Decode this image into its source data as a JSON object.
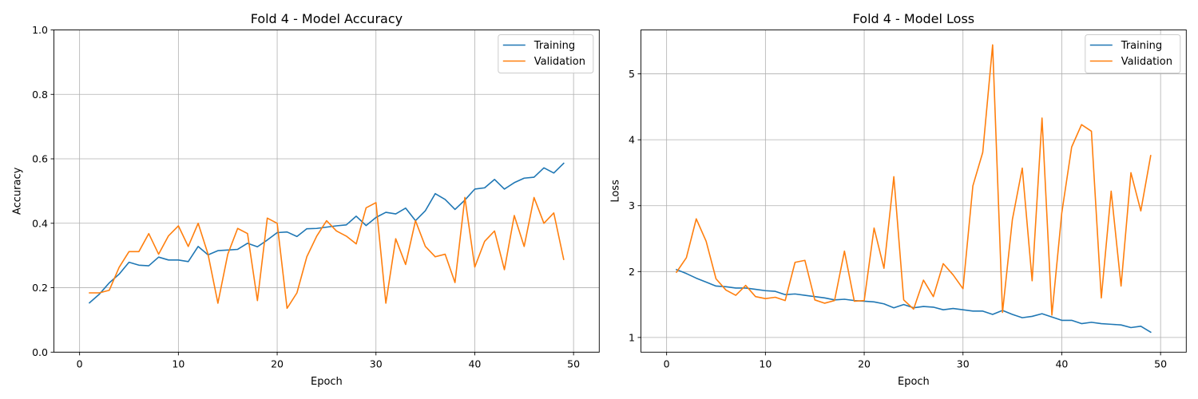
{
  "chart_data": [
    {
      "type": "line",
      "title": "Fold 4 - Model Accuracy",
      "xlabel": "Epoch",
      "ylabel": "Accuracy",
      "xlim": [
        -2.6,
        52.6
      ],
      "ylim": [
        0,
        1
      ],
      "xticks": [
        0,
        10,
        20,
        30,
        40,
        50
      ],
      "xtick_labels": [
        "0",
        "10",
        "20",
        "30",
        "40",
        "50"
      ],
      "yticks": [
        0,
        0.2,
        0.4,
        0.6,
        0.8,
        1.0
      ],
      "ytick_labels": [
        "0.0",
        "0.2",
        "0.4",
        "0.6",
        "0.8",
        "1.0"
      ],
      "grid": true,
      "legend_position": "top-right",
      "x": [
        1,
        2,
        3,
        4,
        5,
        6,
        7,
        8,
        9,
        10,
        11,
        12,
        13,
        14,
        15,
        16,
        17,
        18,
        19,
        20,
        21,
        22,
        23,
        24,
        25,
        26,
        27,
        28,
        29,
        30,
        31,
        32,
        33,
        34,
        35,
        36,
        37,
        38,
        39,
        40,
        41,
        42,
        43,
        44,
        45,
        46,
        47,
        48,
        49
      ],
      "series": [
        {
          "name": "Training",
          "color": "#1f77b4",
          "values": [
            0.153,
            0.18,
            0.215,
            0.242,
            0.279,
            0.27,
            0.268,
            0.295,
            0.286,
            0.286,
            0.281,
            0.328,
            0.302,
            0.315,
            0.317,
            0.319,
            0.338,
            0.327,
            0.348,
            0.371,
            0.373,
            0.359,
            0.383,
            0.384,
            0.388,
            0.392,
            0.395,
            0.422,
            0.393,
            0.418,
            0.434,
            0.429,
            0.447,
            0.408,
            0.439,
            0.492,
            0.474,
            0.443,
            0.472,
            0.506,
            0.51,
            0.536,
            0.506,
            0.526,
            0.54,
            0.543,
            0.572,
            0.556,
            0.586
          ]
        },
        {
          "name": "Validation",
          "color": "#ff7f0e",
          "values": [
            0.184,
            0.184,
            0.192,
            0.263,
            0.312,
            0.312,
            0.368,
            0.304,
            0.361,
            0.392,
            0.328,
            0.4,
            0.304,
            0.152,
            0.304,
            0.384,
            0.368,
            0.16,
            0.416,
            0.4,
            0.136,
            0.184,
            0.296,
            0.36,
            0.408,
            0.376,
            0.36,
            0.336,
            0.448,
            0.464,
            0.152,
            0.352,
            0.272,
            0.408,
            0.328,
            0.296,
            0.304,
            0.216,
            0.48,
            0.264,
            0.344,
            0.376,
            0.256,
            0.424,
            0.328,
            0.48,
            0.4,
            0.432,
            0.288
          ]
        }
      ]
    },
    {
      "type": "line",
      "title": "Fold 4 - Model Loss",
      "xlabel": "Epoch",
      "ylabel": "Loss",
      "xlim": [
        -2.6,
        52.6
      ],
      "ylim": [
        0.777,
        5.667
      ],
      "xticks": [
        0,
        10,
        20,
        30,
        40,
        50
      ],
      "xtick_labels": [
        "0",
        "10",
        "20",
        "30",
        "40",
        "50"
      ],
      "yticks": [
        1,
        2,
        3,
        4,
        5
      ],
      "ytick_labels": [
        "1",
        "2",
        "3",
        "4",
        "5"
      ],
      "grid": true,
      "legend_position": "top-right",
      "x": [
        1,
        2,
        3,
        4,
        5,
        6,
        7,
        8,
        9,
        10,
        11,
        12,
        13,
        14,
        15,
        16,
        17,
        18,
        19,
        20,
        21,
        22,
        23,
        24,
        25,
        26,
        27,
        28,
        29,
        30,
        31,
        32,
        33,
        34,
        35,
        36,
        37,
        38,
        39,
        40,
        41,
        42,
        43,
        44,
        45,
        46,
        47,
        48,
        49
      ],
      "series": [
        {
          "name": "Training",
          "color": "#1f77b4",
          "values": [
            2.03,
            1.97,
            1.9,
            1.84,
            1.78,
            1.77,
            1.75,
            1.75,
            1.73,
            1.71,
            1.7,
            1.65,
            1.66,
            1.64,
            1.62,
            1.6,
            1.57,
            1.58,
            1.56,
            1.55,
            1.54,
            1.51,
            1.45,
            1.5,
            1.45,
            1.47,
            1.46,
            1.42,
            1.44,
            1.42,
            1.4,
            1.4,
            1.35,
            1.41,
            1.35,
            1.3,
            1.32,
            1.36,
            1.31,
            1.26,
            1.26,
            1.21,
            1.23,
            1.21,
            1.2,
            1.19,
            1.15,
            1.17,
            1.08
          ]
        },
        {
          "name": "Validation",
          "color": "#ff7f0e",
          "values": [
            1.99,
            2.21,
            2.8,
            2.46,
            1.89,
            1.72,
            1.64,
            1.79,
            1.62,
            1.59,
            1.61,
            1.56,
            2.14,
            2.17,
            1.57,
            1.52,
            1.56,
            2.31,
            1.55,
            1.56,
            2.66,
            2.05,
            3.44,
            1.57,
            1.43,
            1.87,
            1.62,
            2.12,
            1.95,
            1.74,
            3.3,
            3.81,
            5.44,
            1.38,
            2.79,
            3.57,
            1.86,
            4.33,
            1.34,
            2.89,
            3.89,
            4.23,
            4.13,
            1.6,
            3.22,
            1.78,
            3.5,
            2.92,
            3.76
          ]
        }
      ]
    }
  ]
}
